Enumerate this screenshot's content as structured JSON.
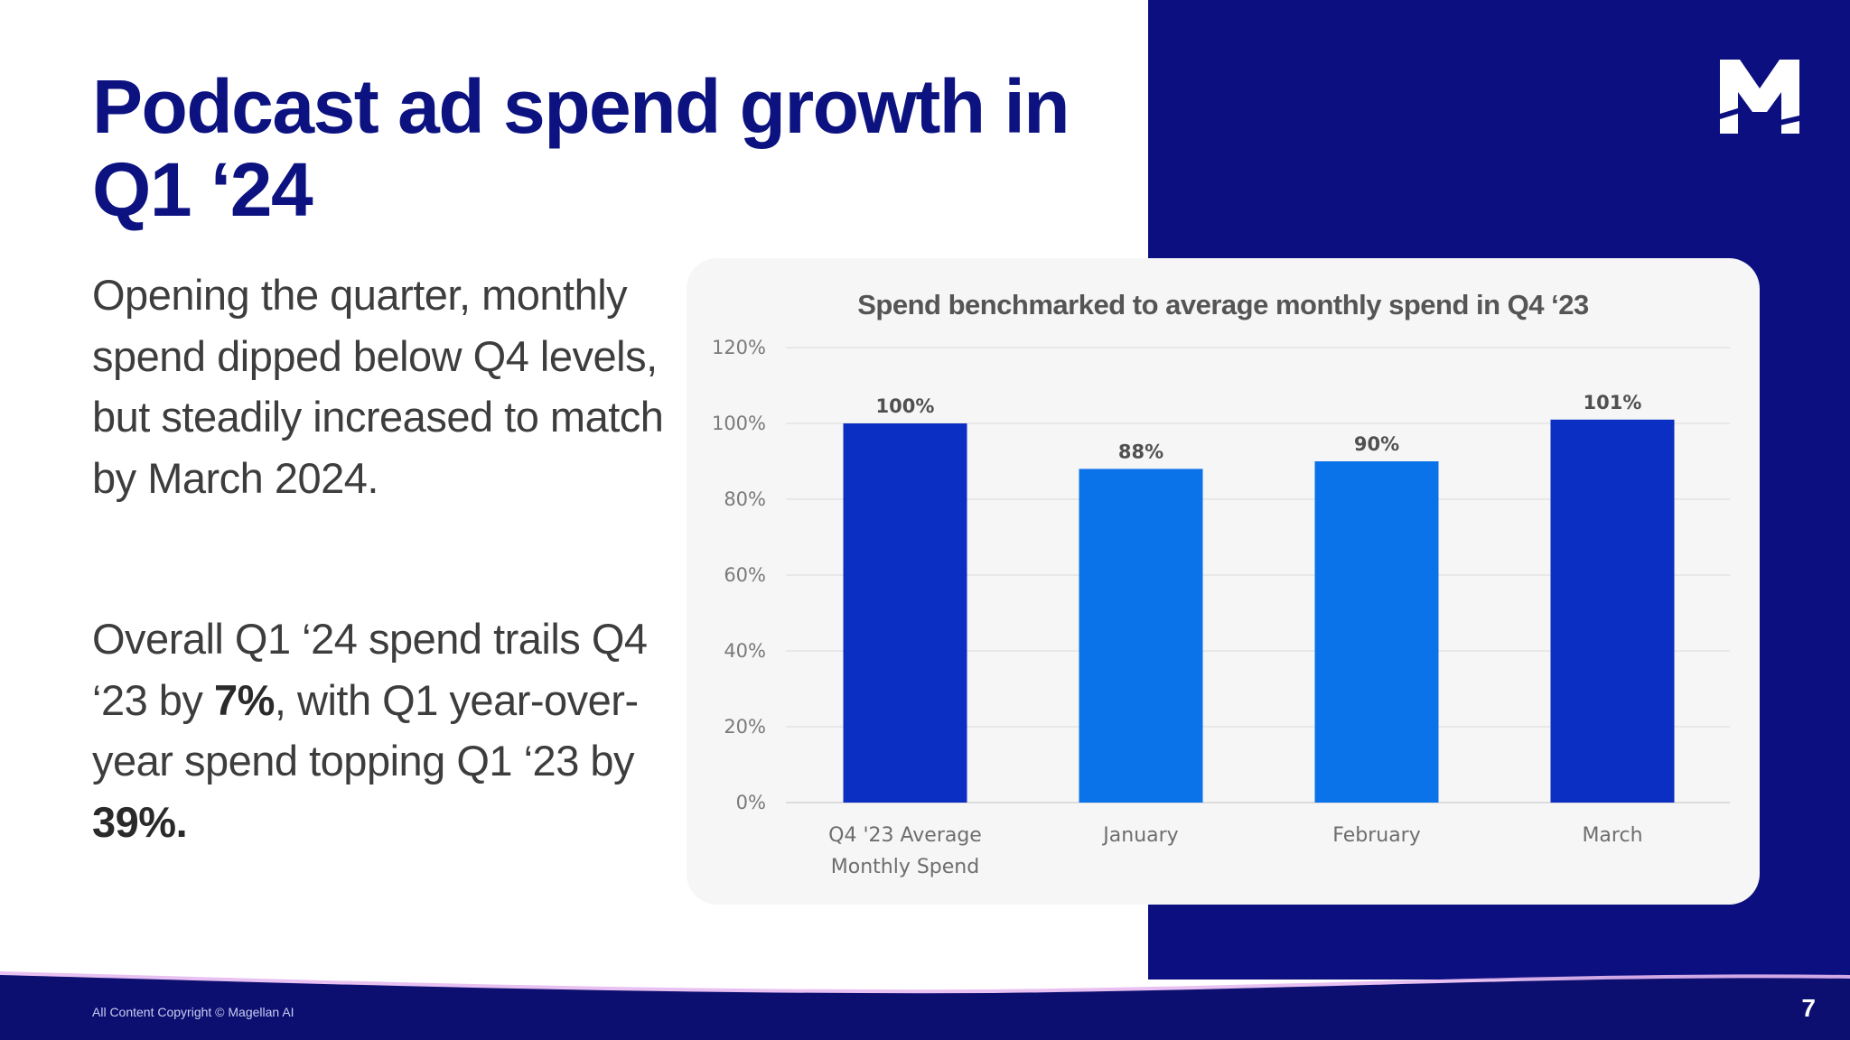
{
  "slide": {
    "title": "Podcast ad spend growth in Q1 ‘24",
    "paragraph1": "Opening the quarter, monthly spend dipped below Q4 levels, but steadily increased to match by March 2024.",
    "paragraph2": {
      "part1": "Overall Q1 ‘24 spend trails Q4 ‘23 by ",
      "bold1": "7%",
      "part2": ", with Q1 year-over-year spend topping Q1 ‘23 by ",
      "bold2": "39%."
    },
    "logo_icon": "m-logo-icon",
    "copyright": "All Content Copyright © Magellan AI",
    "page_number": "7"
  },
  "colors": {
    "title": "#0c1280",
    "panel": "#0c0f80",
    "bar_dark": "#0a2fc2",
    "bar_light": "#0a73ea"
  },
  "chart_data": {
    "type": "bar",
    "title": "Spend benchmarked to average monthly spend in Q4 ‘23",
    "categories": [
      "Q4 '23 Average Monthly Spend",
      "January",
      "February",
      "March"
    ],
    "category_lines": [
      [
        "Q4 '23 Average",
        "Monthly Spend"
      ],
      [
        "January"
      ],
      [
        "February"
      ],
      [
        "March"
      ]
    ],
    "values": [
      100,
      88,
      90,
      101
    ],
    "value_labels": [
      "100%",
      "88%",
      "90%",
      "101%"
    ],
    "bar_colors": [
      "#0a2fc2",
      "#0a73ea",
      "#0a73ea",
      "#0a2fc2"
    ],
    "y_ticks": [
      0,
      20,
      40,
      60,
      80,
      100,
      120
    ],
    "y_tick_labels": [
      "0%",
      "20%",
      "40%",
      "60%",
      "80%",
      "100%",
      "120%"
    ],
    "ylim": [
      0,
      120
    ],
    "xlabel": "",
    "ylabel": "",
    "grid": true
  }
}
